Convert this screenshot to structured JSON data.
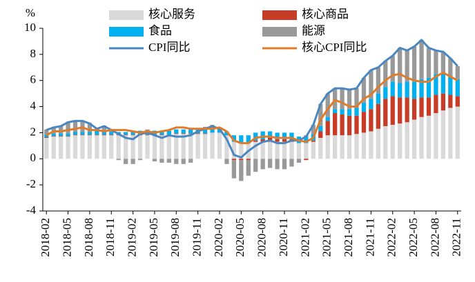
{
  "chart_data": {
    "type": "combo",
    "stacked": true,
    "y_label": "%",
    "legend": "top",
    "categories": [
      "2018-02",
      null,
      null,
      "2018-05",
      null,
      null,
      "2018-08",
      null,
      null,
      "2018-11",
      null,
      null,
      "2019-02",
      null,
      null,
      "2019-05",
      null,
      null,
      "2019-08",
      null,
      null,
      "2019-11",
      null,
      null,
      "2020-02",
      null,
      null,
      "2020-05",
      null,
      null,
      "2020-08",
      null,
      null,
      "2020-11",
      null,
      null,
      "2021-02",
      null,
      null,
      "2021-05",
      null,
      null,
      "2021-08",
      null,
      null,
      "2021-11",
      null,
      null,
      "2022-02",
      null,
      null,
      "2022-05",
      null,
      null,
      "2022-08",
      null,
      null,
      "2022-11"
    ],
    "ylim": [
      -4,
      10
    ],
    "yticks": [
      -4,
      -2,
      0,
      2,
      4,
      6,
      8,
      10
    ],
    "series": [
      {
        "name": "核心服务",
        "type": "bar",
        "color": "#d9d9d9",
        "values": [
          1.6,
          1.7,
          1.7,
          1.7,
          1.8,
          1.8,
          1.8,
          1.8,
          1.8,
          1.8,
          1.8,
          1.8,
          1.8,
          1.8,
          1.8,
          1.8,
          1.8,
          1.8,
          1.9,
          1.9,
          1.9,
          1.9,
          1.9,
          2.0,
          2.0,
          1.8,
          1.3,
          1.2,
          1.2,
          1.3,
          1.3,
          1.3,
          1.3,
          1.3,
          1.3,
          1.2,
          1.2,
          1.3,
          1.6,
          1.8,
          1.8,
          1.8,
          1.8,
          1.9,
          2.0,
          2.1,
          2.3,
          2.5,
          2.6,
          2.7,
          2.8,
          3.0,
          3.2,
          3.3,
          3.5,
          3.7,
          3.9,
          4.0
        ]
      },
      {
        "name": "核心商品",
        "type": "bar",
        "color": "#c63c26",
        "values": [
          0.05,
          0.05,
          0.05,
          0.05,
          0.05,
          0.05,
          0.05,
          0.05,
          0.05,
          0.05,
          0.05,
          0.05,
          0.05,
          0.05,
          0.05,
          0.05,
          0.05,
          0.05,
          0.05,
          0.05,
          0.05,
          0.05,
          0.05,
          0.0,
          0.0,
          0.0,
          -0.1,
          -0.1,
          -0.1,
          0.1,
          0.2,
          0.3,
          0.2,
          0.2,
          0.2,
          0.0,
          -0.1,
          0.1,
          0.5,
          1.1,
          1.7,
          1.6,
          1.5,
          1.4,
          1.6,
          1.7,
          1.9,
          2.1,
          2.2,
          2.0,
          1.9,
          1.6,
          1.5,
          1.4,
          1.4,
          1.3,
          1.0,
          0.8
        ]
      },
      {
        "name": "食品",
        "type": "bar",
        "color": "#00b0f0",
        "values": [
          0.2,
          0.2,
          0.2,
          0.2,
          0.2,
          0.2,
          0.2,
          0.3,
          0.2,
          0.2,
          0.2,
          0.2,
          0.3,
          0.3,
          0.3,
          0.3,
          0.3,
          0.3,
          0.3,
          0.3,
          0.3,
          0.3,
          0.3,
          0.3,
          0.3,
          0.3,
          0.5,
          0.6,
          0.6,
          0.6,
          0.6,
          0.5,
          0.5,
          0.5,
          0.5,
          0.5,
          0.5,
          0.5,
          0.4,
          0.3,
          0.3,
          0.4,
          0.5,
          0.6,
          0.7,
          0.8,
          0.8,
          0.9,
          1.1,
          1.1,
          1.2,
          1.3,
          1.4,
          1.5,
          1.6,
          1.6,
          1.4,
          1.3
        ]
      },
      {
        "name": "能源",
        "type": "bar",
        "color": "#999999",
        "values": [
          0.4,
          0.5,
          0.6,
          0.9,
          0.9,
          0.9,
          0.7,
          0.2,
          0.5,
          0.2,
          -0.1,
          -0.4,
          -0.4,
          -0.1,
          0.1,
          -0.2,
          -0.3,
          -0.3,
          -0.4,
          -0.4,
          -0.3,
          0.0,
          0.2,
          0.3,
          0.1,
          -0.4,
          -1.4,
          -1.6,
          -1.2,
          -1.0,
          -0.8,
          -0.7,
          -0.8,
          -0.8,
          -0.6,
          -0.3,
          0.1,
          0.7,
          1.7,
          1.8,
          1.6,
          1.6,
          1.5,
          1.5,
          1.9,
          2.2,
          2.0,
          2.0,
          2.0,
          2.7,
          2.4,
          2.7,
          3.0,
          2.3,
          1.8,
          1.6,
          1.4,
          1.0
        ]
      },
      {
        "name": "CPI同比",
        "type": "line",
        "color": "#4a86c0",
        "values": [
          2.2,
          2.4,
          2.5,
          2.8,
          2.9,
          2.9,
          2.7,
          2.3,
          2.5,
          2.2,
          1.9,
          1.6,
          1.5,
          1.9,
          2.0,
          1.8,
          1.6,
          1.8,
          1.7,
          1.7,
          1.8,
          2.1,
          2.3,
          2.5,
          2.3,
          1.5,
          0.3,
          0.1,
          0.6,
          1.0,
          1.3,
          1.4,
          1.2,
          1.2,
          1.4,
          1.4,
          1.7,
          2.6,
          4.2,
          5.0,
          5.4,
          5.4,
          5.3,
          5.4,
          6.2,
          6.8,
          7.0,
          7.5,
          7.9,
          8.5,
          8.3,
          8.6,
          9.1,
          8.5,
          8.3,
          8.2,
          7.7,
          7.1
        ]
      },
      {
        "name": "核心CPI同比",
        "type": "line",
        "color": "#e07b2a",
        "values": [
          1.8,
          2.1,
          2.1,
          2.2,
          2.3,
          2.4,
          2.2,
          2.2,
          2.1,
          2.2,
          2.2,
          2.2,
          2.1,
          2.0,
          2.1,
          2.0,
          2.1,
          2.2,
          2.4,
          2.4,
          2.3,
          2.3,
          2.3,
          2.3,
          2.4,
          2.1,
          1.4,
          1.2,
          1.2,
          1.6,
          1.7,
          1.7,
          1.6,
          1.6,
          1.6,
          1.4,
          1.3,
          1.6,
          3.0,
          3.8,
          4.5,
          4.3,
          4.0,
          4.0,
          4.6,
          4.9,
          5.5,
          6.0,
          6.4,
          6.5,
          6.2,
          6.0,
          5.9,
          5.9,
          6.3,
          6.6,
          6.3,
          6.0
        ]
      }
    ]
  }
}
